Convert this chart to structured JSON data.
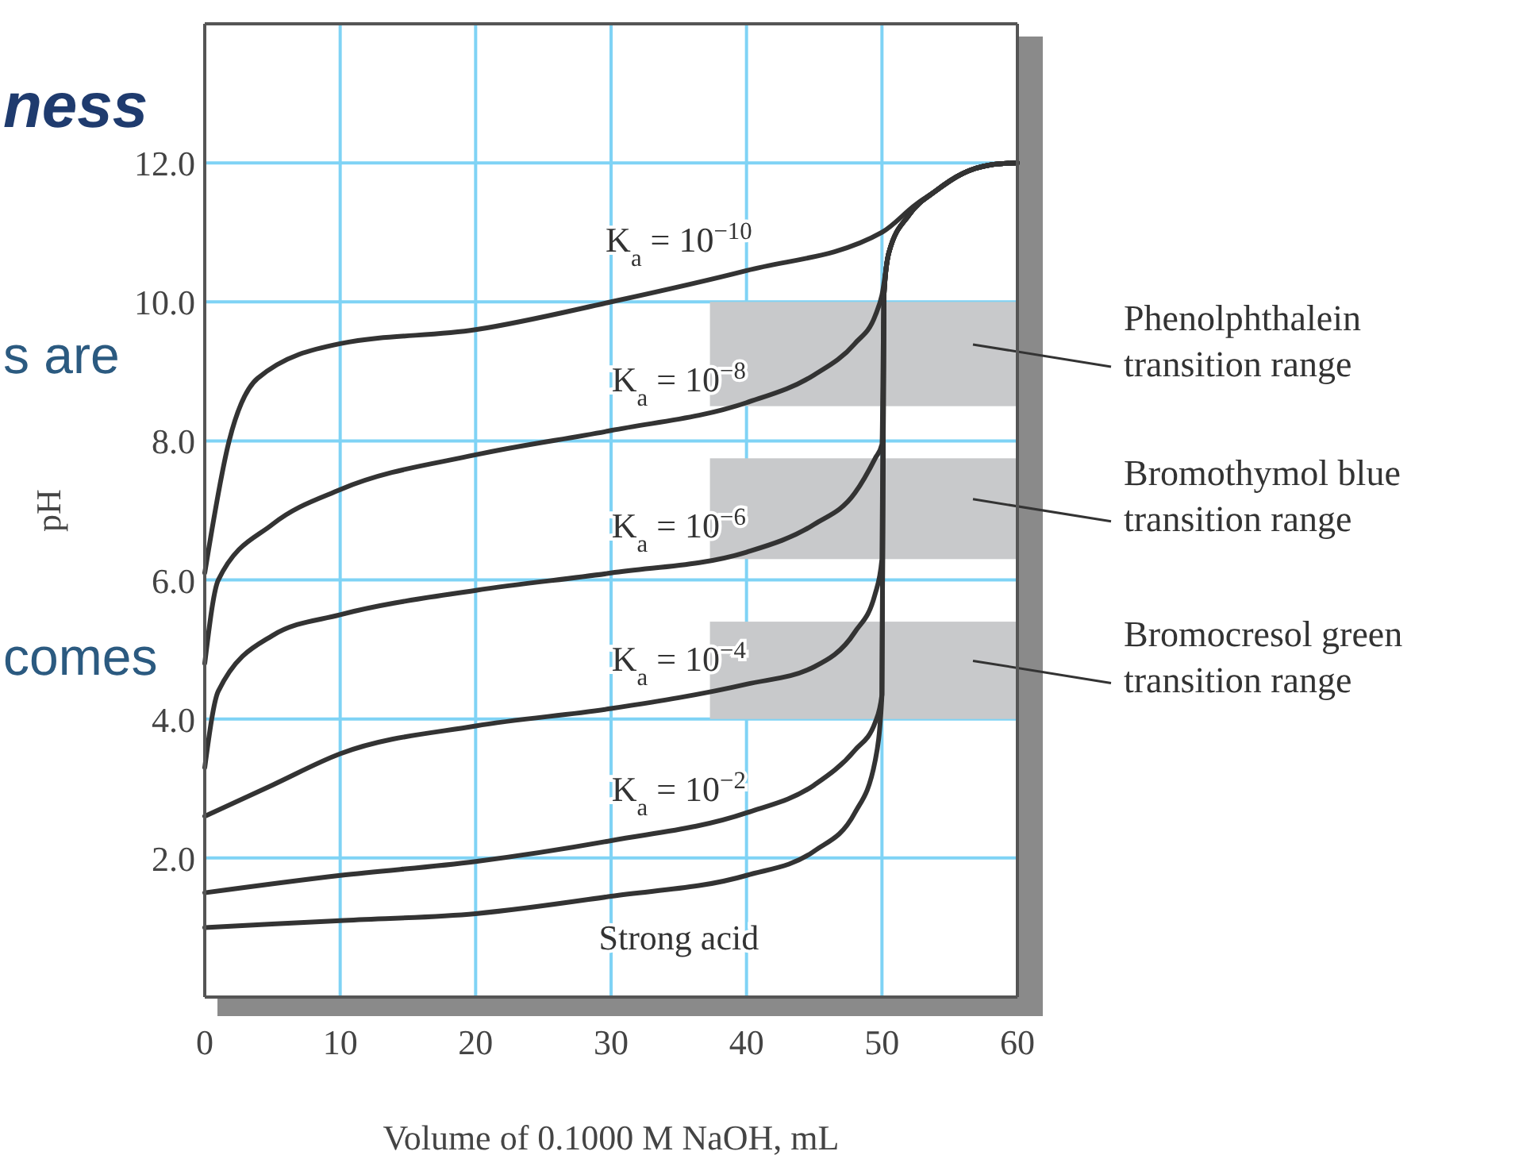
{
  "chart_data": {
    "type": "line",
    "xlabel": "Volume of 0.1000 M NaOH, mL",
    "ylabel": "pH",
    "xlim": [
      0,
      60
    ],
    "xticks": [
      0,
      10,
      20,
      30,
      40,
      50,
      60
    ],
    "ylim": [
      0,
      14
    ],
    "yticks": [
      {
        "value": 2,
        "label": "2.0"
      },
      {
        "value": 4,
        "label": "4.0"
      },
      {
        "value": 6,
        "label": "6.0"
      },
      {
        "value": 8,
        "label": "8.0"
      },
      {
        "value": 10,
        "label": "10.0"
      },
      {
        "value": 12,
        "label": "12.0"
      }
    ],
    "grid": true,
    "marker": "none",
    "line_style": "solid",
    "series": [
      {
        "name": "K$_{a}$ = 10$^{−10}$",
        "color": "#333333",
        "x": [
          0,
          1.8,
          3.9,
          10,
          20,
          30,
          40,
          50,
          52.5,
          53,
          54,
          56,
          58,
          60
        ],
        "values": [
          6.1,
          8.0,
          8.9,
          9.4,
          9.6,
          10.0,
          10.45,
          11.0,
          11.4,
          11.47,
          11.6,
          11.85,
          11.97,
          12.0
        ]
      },
      {
        "name": "K$_{a}$ = 10$^{−8}$",
        "color": "#333333",
        "x": [
          0,
          1,
          5,
          10,
          20,
          30,
          40,
          45,
          48,
          49.5,
          50,
          50.5,
          52,
          54,
          56,
          58,
          60
        ],
        "values": [
          4.8,
          6.0,
          6.8,
          7.3,
          7.8,
          8.15,
          8.55,
          8.95,
          9.4,
          9.8,
          10.1,
          10.7,
          11.25,
          11.6,
          11.85,
          11.97,
          12.0
        ]
      },
      {
        "name": "K$_{a}$ = 10$^{−6}$",
        "color": "#333333",
        "x": [
          0,
          1,
          5,
          10,
          20,
          30,
          40,
          45,
          48,
          49.5,
          50,
          50.15,
          50.5,
          52,
          54,
          56,
          58,
          60
        ],
        "values": [
          3.3,
          4.4,
          5.2,
          5.5,
          5.85,
          6.1,
          6.4,
          6.8,
          7.25,
          7.75,
          7.95,
          10.1,
          10.7,
          11.25,
          11.6,
          11.85,
          11.97,
          12.0
        ]
      },
      {
        "name": "K$_{a}$ = 10$^{−4}$",
        "color": "#333333",
        "x": [
          0,
          5,
          10,
          20,
          30,
          40,
          45,
          48,
          49.5,
          50,
          50.15,
          50.5,
          52,
          54,
          56,
          58,
          60
        ],
        "values": [
          2.6,
          3.05,
          3.5,
          3.9,
          4.15,
          4.5,
          4.75,
          5.25,
          5.8,
          6.3,
          10.1,
          10.7,
          11.25,
          11.6,
          11.85,
          11.97,
          12.0
        ]
      },
      {
        "name": "K$_{a}$ = 10$^{−2}$",
        "color": "#333333",
        "x": [
          0,
          10,
          20,
          30,
          40,
          45,
          48,
          49.5,
          50,
          50.15,
          50.5,
          52,
          54,
          56,
          58,
          60
        ],
        "values": [
          1.5,
          1.75,
          1.95,
          2.25,
          2.65,
          3.05,
          3.55,
          3.95,
          4.35,
          10.1,
          10.7,
          11.25,
          11.6,
          11.85,
          11.97,
          12.0
        ]
      },
      {
        "name": "Strong acid",
        "color": "#333333",
        "x": [
          0,
          10,
          20,
          30,
          40,
          45,
          48,
          49.5,
          50,
          50.15,
          50.5,
          52,
          54,
          56,
          58,
          60
        ],
        "values": [
          1.0,
          1.1,
          1.2,
          1.45,
          1.75,
          2.1,
          2.65,
          3.4,
          4.35,
          10.1,
          10.7,
          11.25,
          11.6,
          11.85,
          11.97,
          12.0
        ]
      }
    ],
    "bands": [
      {
        "axis": "y",
        "from": 8.5,
        "to": 10.0,
        "label": "Phenolphthalein\ntransition range",
        "color": "#c8c9cb"
      },
      {
        "axis": "y",
        "from": 6.3,
        "to": 7.75,
        "label": "Bromothymol blue\ntransition range",
        "color": "#c8c9cb"
      },
      {
        "axis": "y",
        "from": 4.0,
        "to": 5.4,
        "label": "Bromocresol green\ntransition range",
        "color": "#c8c9cb"
      }
    ],
    "annotations": [
      "ness",
      "s  are",
      "comes"
    ]
  }
}
